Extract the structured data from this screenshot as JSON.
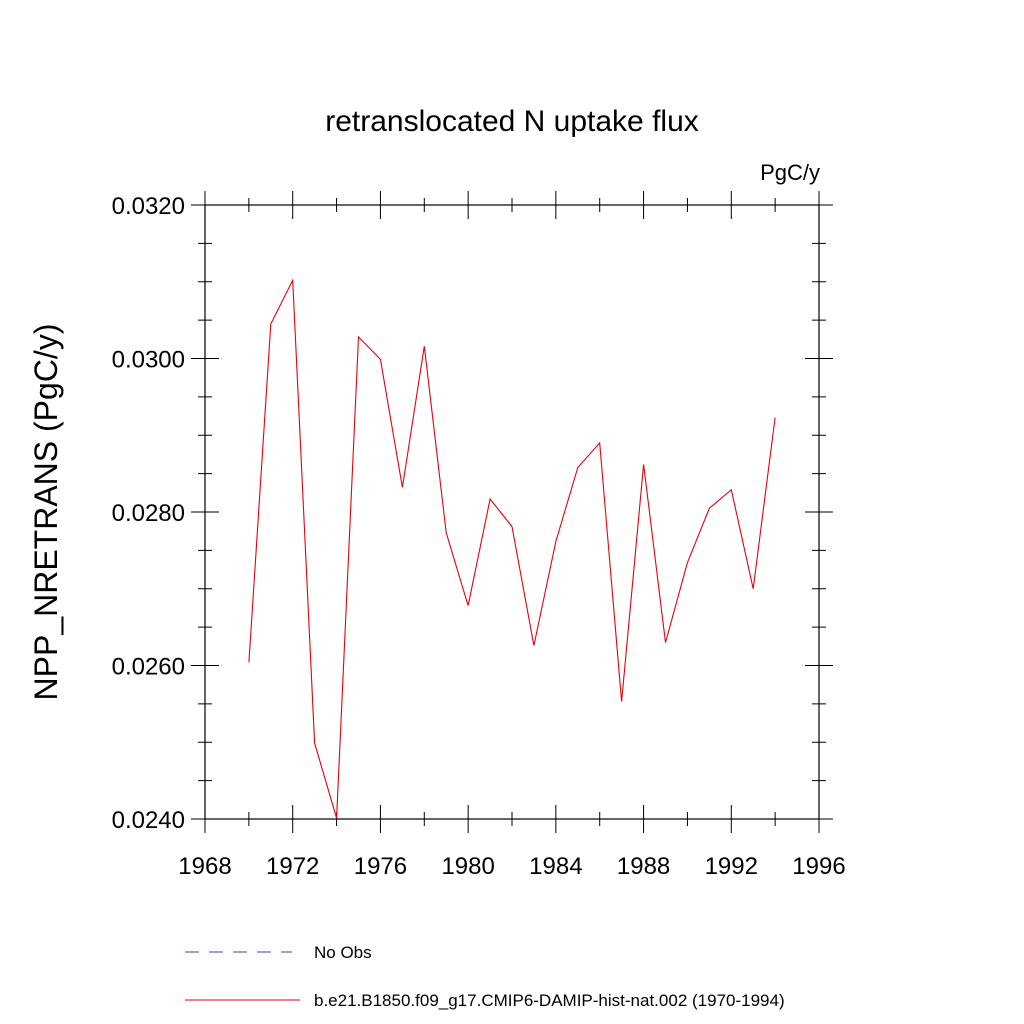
{
  "chart_data": {
    "type": "line",
    "title": "retranslocated N uptake flux",
    "units_label": "PgC/y",
    "ylabel": "NPP_NRETRANS  (PgC/y)",
    "xlabel": "",
    "xlim": [
      1968,
      1996
    ],
    "ylim": [
      0.024,
      0.032
    ],
    "x_ticks": [
      1968,
      1972,
      1976,
      1980,
      1984,
      1988,
      1992,
      1996
    ],
    "x_tick_labels": [
      "1968",
      "1972",
      "1976",
      "1980",
      "1984",
      "1988",
      "1992",
      "1996"
    ],
    "y_ticks": [
      0.024,
      0.026,
      0.028,
      0.03,
      0.032
    ],
    "y_tick_labels": [
      "0.0240",
      "0.0260",
      "0.0280",
      "0.0300",
      "0.0320"
    ],
    "grid": false,
    "legend_position": "bottom",
    "legend": [
      {
        "label": "No Obs",
        "color": "#3b3bcc",
        "style": "dashed"
      },
      {
        "label": "b.e21.B1850.f09_g17.CMIP6-DAMIP-hist-nat.002 (1970-1994)",
        "color": "#e8000b",
        "style": "solid"
      }
    ],
    "series": [
      {
        "name": "b.e21.B1850.f09_g17.CMIP6-DAMIP-hist-nat.002 (1970-1994)",
        "color": "#e8000b",
        "x": [
          1970,
          1971,
          1972,
          1973,
          1974,
          1975,
          1976,
          1977,
          1978,
          1979,
          1980,
          1981,
          1982,
          1983,
          1984,
          1985,
          1986,
          1987,
          1988,
          1989,
          1990,
          1991,
          1992,
          1993,
          1994
        ],
        "y": [
          0.02604,
          0.03045,
          0.03102,
          0.02499,
          0.02401,
          0.03028,
          0.02999,
          0.02832,
          0.03016,
          0.02773,
          0.02678,
          0.02817,
          0.02781,
          0.02626,
          0.02762,
          0.02858,
          0.0289,
          0.02553,
          0.02862,
          0.0263,
          0.02734,
          0.02805,
          0.02829,
          0.027,
          0.02923
        ]
      }
    ]
  }
}
